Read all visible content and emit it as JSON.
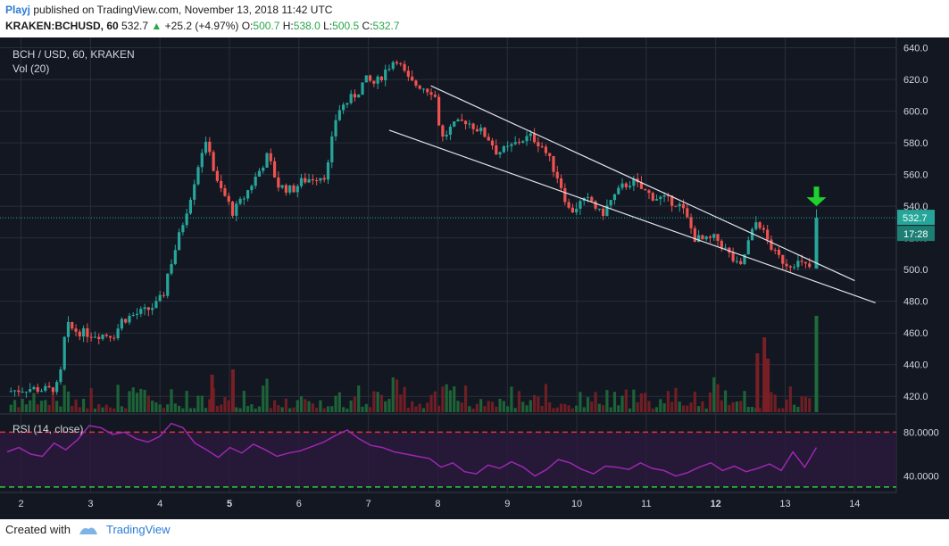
{
  "header": {
    "author": "Playj",
    "published_text": "published on TradingView.com, November 13, 2018 11:42 UTC",
    "symbol": "KRAKEN:BCHUSD, 60",
    "last": "532.7",
    "change_arrow": "▲",
    "change": "+25.2 (+4.97%)",
    "o_label": "O:",
    "o_value": "500.7",
    "h_label": "H:",
    "h_value": "538.0",
    "l_label": "L:",
    "l_value": "500.5",
    "c_label": "C:",
    "c_value": "532.7"
  },
  "chart_data": [
    {
      "type": "candlestick",
      "legend_title": "BCH / USD, 60, KRAKEN",
      "legend_sub": "Vol (20)",
      "x_ticks": [
        "2",
        "3",
        "4",
        "5",
        "6",
        "7",
        "8",
        "9",
        "10",
        "11",
        "12",
        "13",
        "14"
      ],
      "y_ticks": [
        "640.0",
        "620.0",
        "600.0",
        "580.0",
        "560.0",
        "540.0",
        "520.0",
        "500.0",
        "480.0",
        "460.0",
        "440.0",
        "420.0"
      ],
      "ylim": [
        410,
        642
      ],
      "xlim": [
        1.8,
        14.6
      ],
      "last_price_label": "532.7",
      "countdown_label": "17:28",
      "price_path": [
        [
          1.8,
          423
        ],
        [
          2.1,
          425
        ],
        [
          2.4,
          424
        ],
        [
          2.55,
          427
        ],
        [
          2.6,
          447
        ],
        [
          2.65,
          465
        ],
        [
          2.75,
          462
        ],
        [
          2.9,
          460
        ],
        [
          3.1,
          459
        ],
        [
          3.35,
          459
        ],
        [
          3.45,
          468
        ],
        [
          3.6,
          471
        ],
        [
          3.8,
          474
        ],
        [
          3.95,
          478
        ],
        [
          4.05,
          484
        ],
        [
          4.1,
          496
        ],
        [
          4.2,
          510
        ],
        [
          4.3,
          525
        ],
        [
          4.45,
          548
        ],
        [
          4.6,
          575
        ],
        [
          4.7,
          580
        ],
        [
          4.8,
          556
        ],
        [
          4.95,
          545
        ],
        [
          5.05,
          536
        ],
        [
          5.2,
          545
        ],
        [
          5.4,
          560
        ],
        [
          5.55,
          572
        ],
        [
          5.7,
          553
        ],
        [
          5.9,
          550
        ],
        [
          6.05,
          556
        ],
        [
          6.2,
          558
        ],
        [
          6.4,
          560
        ],
        [
          6.45,
          575
        ],
        [
          6.55,
          600
        ],
        [
          6.7,
          606
        ],
        [
          6.85,
          612
        ],
        [
          6.95,
          620
        ],
        [
          7.1,
          617
        ],
        [
          7.25,
          626
        ],
        [
          7.4,
          634
        ],
        [
          7.5,
          625
        ],
        [
          7.6,
          618
        ],
        [
          7.75,
          616
        ],
        [
          7.95,
          612
        ],
        [
          8.05,
          582
        ],
        [
          8.2,
          590
        ],
        [
          8.4,
          594
        ],
        [
          8.6,
          588
        ],
        [
          8.75,
          582
        ],
        [
          8.85,
          574
        ],
        [
          9.0,
          576
        ],
        [
          9.2,
          582
        ],
        [
          9.35,
          584
        ],
        [
          9.5,
          578
        ],
        [
          9.6,
          570
        ],
        [
          9.75,
          556
        ],
        [
          9.9,
          536
        ],
        [
          10.05,
          542
        ],
        [
          10.2,
          544
        ],
        [
          10.35,
          534
        ],
        [
          10.5,
          544
        ],
        [
          10.65,
          552
        ],
        [
          10.8,
          556
        ],
        [
          10.95,
          550
        ],
        [
          11.1,
          546
        ],
        [
          11.3,
          544
        ],
        [
          11.45,
          542
        ],
        [
          11.55,
          536
        ],
        [
          11.7,
          520
        ],
        [
          11.85,
          518
        ],
        [
          12.0,
          520
        ],
        [
          12.15,
          512
        ],
        [
          12.25,
          506
        ],
        [
          12.35,
          500
        ],
        [
          12.45,
          515
        ],
        [
          12.6,
          532
        ],
        [
          12.7,
          522
        ],
        [
          12.85,
          510
        ],
        [
          12.95,
          506
        ],
        [
          13.05,
          503
        ],
        [
          13.15,
          505
        ],
        [
          13.3,
          502
        ],
        [
          13.38,
          501
        ],
        [
          13.45,
          532.7
        ]
      ],
      "trendlines": [
        {
          "from": [
            7.9,
            616
          ],
          "to": [
            14.0,
            493
          ]
        },
        {
          "from": [
            7.3,
            588
          ],
          "to": [
            14.3,
            479
          ]
        }
      ],
      "volume_spikes": [
        {
          "x": 12.6,
          "rel": 0.55
        },
        {
          "x": 12.7,
          "rel": 0.7
        },
        {
          "x": 12.75,
          "rel": 0.5
        },
        {
          "x": 13.45,
          "rel": 0.9
        },
        {
          "x": 4.75,
          "rel": 0.35
        },
        {
          "x": 5.05,
          "rel": 0.4
        }
      ],
      "signal_arrow": {
        "x": 13.45,
        "y": 540,
        "color": "#1ed22e"
      }
    },
    {
      "type": "line",
      "legend_title": "RSI (14, close)",
      "y_ticks": [
        "80.0000",
        "40.0000"
      ],
      "ylim": [
        25,
        95
      ],
      "upper_band": 80,
      "lower_band": 30,
      "series": [
        {
          "values": [
            62,
            66,
            60,
            58,
            70,
            64,
            73,
            86,
            84,
            78,
            80,
            74,
            71,
            76,
            88,
            84,
            70,
            64,
            57,
            66,
            61,
            69,
            64,
            58,
            61,
            63,
            67,
            71,
            77,
            82,
            74,
            68,
            66,
            62,
            60,
            58,
            56,
            48,
            52,
            44,
            42,
            50,
            47,
            53,
            48,
            40,
            46,
            55,
            52,
            46,
            42,
            49,
            48,
            46,
            52,
            47,
            45,
            40,
            43,
            48,
            52,
            45,
            49,
            44,
            47,
            51,
            45,
            62,
            48,
            66
          ]
        }
      ]
    }
  ],
  "footer": {
    "created_with": "Created with",
    "brand": "TradingView"
  },
  "colors": {
    "bg": "#131722",
    "grid": "#2a2e39",
    "up": "#26a69a",
    "down": "#ef5350",
    "rsi": "#9d27b0",
    "band": "#e5303b",
    "lowband": "#2bcf3f"
  }
}
